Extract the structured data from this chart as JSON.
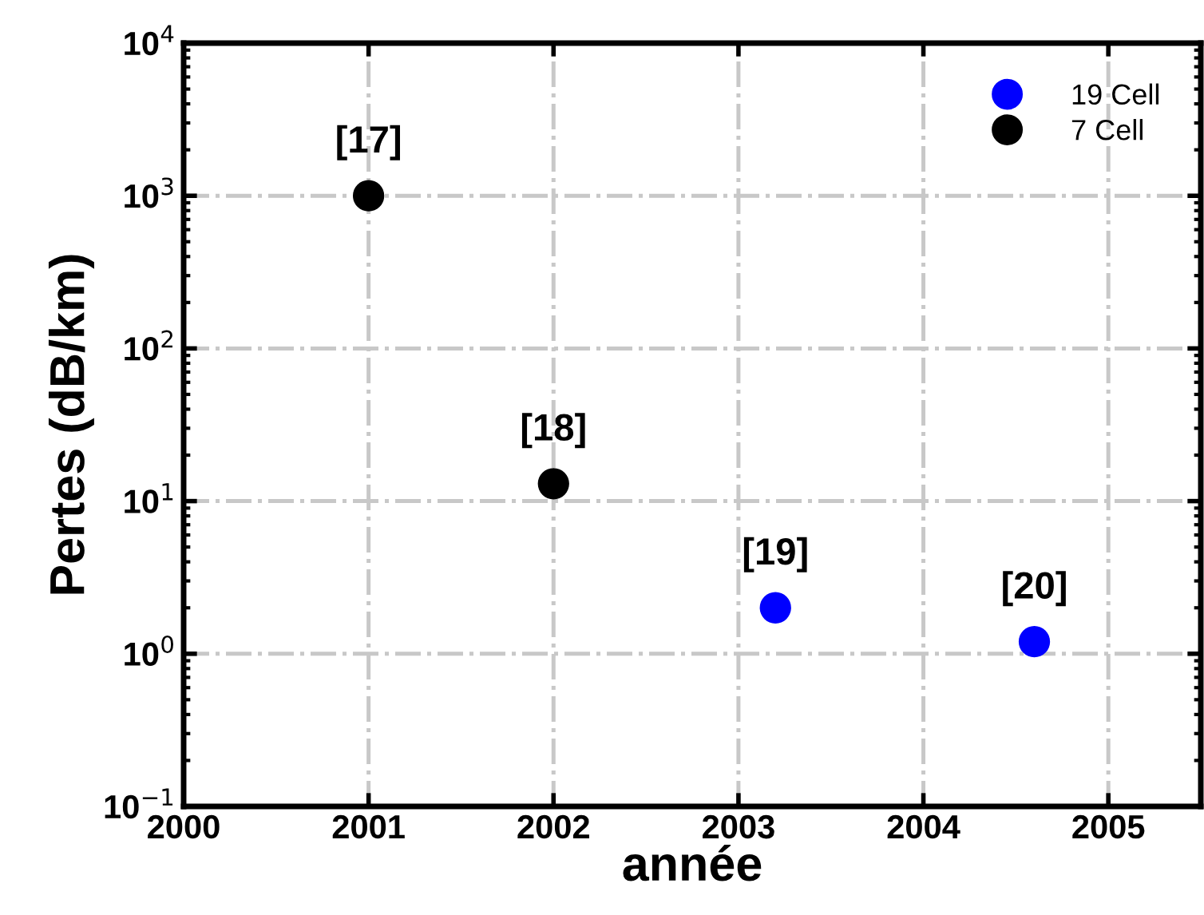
{
  "chart_data": {
    "type": "scatter",
    "xlabel": "année",
    "ylabel": "Pertes (dB/km)",
    "log": "y",
    "xlim": [
      2000,
      2005.5
    ],
    "xticks": [
      2000,
      2001,
      2002,
      2003,
      2004,
      2005
    ],
    "ylim": [
      0.1,
      10000
    ],
    "yticks": [
      {
        "value": 0.1,
        "label": "10$^{−1}$"
      },
      {
        "value": 1,
        "label": "10$^{0}$"
      },
      {
        "value": 10,
        "label": "10$^{1}$"
      },
      {
        "value": 100,
        "label": "10$^{2}$"
      },
      {
        "value": 1000,
        "label": "10$^{3}$"
      },
      {
        "value": 10000,
        "label": "10$^{4}$"
      }
    ],
    "grid": true,
    "legend": "top right",
    "marker": "circle",
    "series": [
      {
        "name": "19 Cell",
        "color": "#0000ff",
        "x": [
          2003.2,
          2004.6
        ],
        "values": [
          2.0,
          1.2
        ]
      },
      {
        "name": "7 Cell",
        "color": "#000000",
        "x": [
          2001.0,
          2002.0
        ],
        "values": [
          1000,
          13
        ]
      }
    ],
    "annotations": [
      {
        "text": "[17]",
        "x": 2001.0,
        "y": 1000
      },
      {
        "text": "[18]",
        "x": 2002.0,
        "y": 13
      },
      {
        "text": "[19]",
        "x": 2003.2,
        "y": 2.0
      },
      {
        "text": "[20]",
        "x": 2004.6,
        "y": 1.2
      }
    ]
  }
}
